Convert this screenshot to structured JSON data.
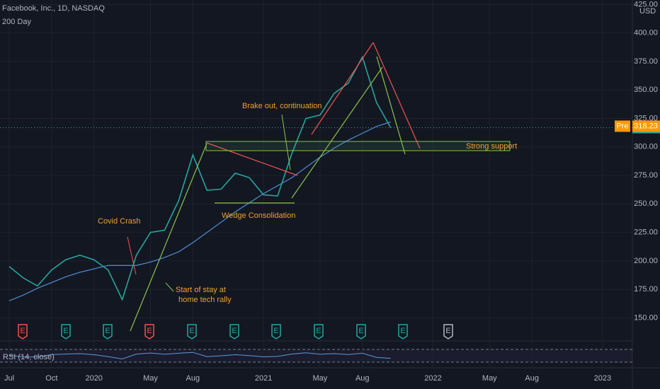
{
  "header": {
    "title": "Facebook, Inc., 1D, NASDAQ",
    "currency": "USD",
    "earnings_marker": "E"
  },
  "chart_data": [
    {
      "type": "line",
      "categories": [
        "Jul",
        null,
        null,
        "Oct",
        null,
        null,
        "2020",
        null,
        null,
        null,
        "May",
        null,
        null,
        "Aug",
        null,
        null,
        null,
        null,
        "2021",
        null,
        null,
        null,
        "May",
        null,
        null,
        "Aug",
        null,
        null,
        null,
        null,
        "2022",
        null,
        null,
        null,
        "May",
        null,
        null,
        "Aug",
        null,
        null,
        null,
        null,
        "2023"
      ],
      "series": [
        {
          "color": "#26a69a",
          "values": [
            195,
            185,
            178,
            192,
            201,
            205,
            201,
            192,
            166,
            205,
            225,
            227,
            253,
            293,
            262,
            263,
            277,
            273,
            258,
            257,
            294,
            325,
            328,
            347,
            356,
            379,
            339,
            316.92,
            null,
            null,
            null,
            null,
            null,
            null,
            null,
            null,
            null,
            null,
            null,
            null,
            null,
            null,
            null
          ]
        },
        {
          "name": "200 Day",
          "color": "#4a86c5",
          "values": [
            165,
            170,
            176,
            181,
            186,
            190,
            193,
            196,
            196,
            196,
            199,
            203,
            208,
            216,
            225,
            234,
            243,
            251,
            259,
            266,
            273,
            282,
            291,
            299,
            306,
            312,
            318,
            322,
            null,
            null,
            null,
            null,
            null,
            null,
            null,
            null,
            null,
            null,
            null,
            null,
            null,
            null,
            null
          ]
        }
      ],
      "ylim": [
        131,
        429
      ],
      "yticks": [
        {
          "value": 150,
          "label": "150.00"
        },
        {
          "value": 175,
          "label": "175.00"
        },
        {
          "value": 200,
          "label": "200.00"
        },
        {
          "value": 225,
          "label": "225.00"
        },
        {
          "value": 250,
          "label": "250.00"
        },
        {
          "value": 275,
          "label": "275.00"
        },
        {
          "value": 300,
          "label": "300.00"
        },
        {
          "value": 325,
          "label": "325.00"
        },
        {
          "value": 350,
          "label": "350.00"
        },
        {
          "value": 375,
          "label": "375.00"
        },
        {
          "value": 400,
          "label": "400.00"
        },
        {
          "value": 425,
          "label": "425.00"
        }
      ],
      "grid": true,
      "pre_label": "Pre",
      "pre_price": 318.23,
      "last_price": 316.92,
      "annotations": [
        "Covid Crash",
        [
          "Start of stay at",
          "home tech rally"
        ],
        "Wedge Consolidation",
        "Brake out, continuation",
        "Strong support"
      ]
    },
    {
      "type": "line",
      "title": "RSI (14, close)",
      "series": [
        {
          "color": "#5b9bd5",
          "values": [
            52,
            45,
            44,
            56,
            58,
            60,
            55,
            46,
            35,
            58,
            63,
            57,
            62,
            66,
            46,
            50,
            55,
            51,
            45,
            47,
            58,
            64,
            57,
            60,
            56,
            62,
            42,
            38,
            null,
            null,
            null,
            null,
            null,
            null,
            null,
            null,
            null,
            null,
            null,
            null,
            null,
            null,
            null
          ]
        }
      ],
      "ylim": [
        0,
        100
      ]
    }
  ]
}
